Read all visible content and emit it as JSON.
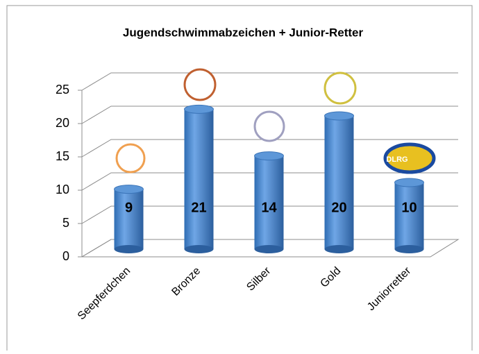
{
  "chart_data": {
    "type": "bar",
    "title": "Jugendschwimmabzeichen + Junior-Retter",
    "categories": [
      "Seepferdchen",
      "Bronze",
      "Silber",
      "Gold",
      "Juniorretter"
    ],
    "values": [
      9,
      21,
      14,
      20,
      10
    ],
    "color": "#4a8ad0",
    "ylim": [
      0,
      25
    ],
    "yticks": [
      0,
      5,
      10,
      15,
      20,
      25
    ],
    "grid": true,
    "annotations": [
      "DLRG"
    ]
  }
}
